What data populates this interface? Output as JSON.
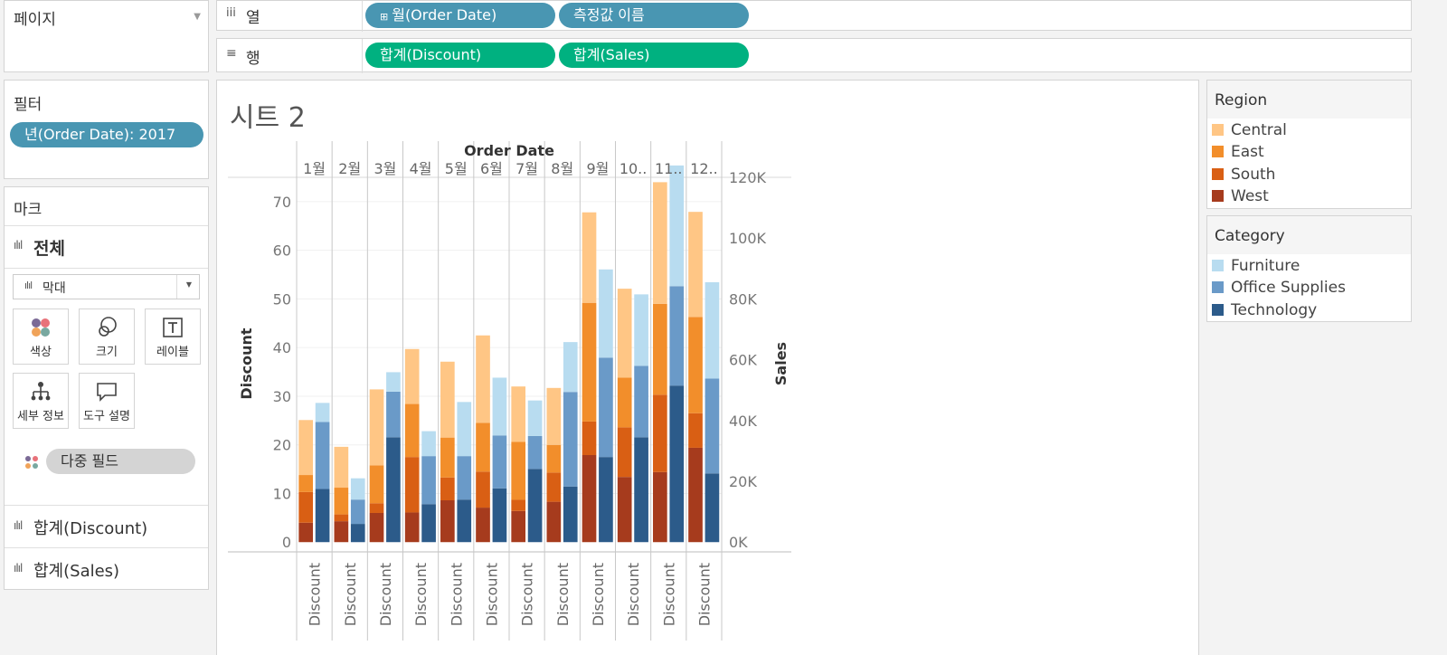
{
  "pages_panel": {
    "title": "페이지"
  },
  "columns_shelf": {
    "label": "열",
    "pills": [
      "월(Order Date)",
      "측정값 이름"
    ]
  },
  "rows_shelf": {
    "label": "행",
    "pills": [
      "합계(Discount)",
      "합계(Sales)"
    ]
  },
  "filters_panel": {
    "title": "필터",
    "pill": "년(Order Date): 2017"
  },
  "marks_panel": {
    "title": "마크",
    "all_label": "전체",
    "mark_type": "막대",
    "cards": {
      "color": "색상",
      "size": "크기",
      "label": "레이블",
      "detail": "세부 정보",
      "tooltip": "도구 설명"
    },
    "multi_field": "다중 필드",
    "measure_discount": "합계(Discount)",
    "measure_sales": "합계(Sales)"
  },
  "sheet": {
    "title": "시트 2"
  },
  "legend_region": {
    "title": "Region",
    "items": [
      {
        "label": "Central",
        "color": "#ffc685"
      },
      {
        "label": "East",
        "color": "#f28e2b"
      },
      {
        "label": "South",
        "color": "#d95f14"
      },
      {
        "label": "West",
        "color": "#a63b1d"
      }
    ]
  },
  "legend_category": {
    "title": "Category",
    "items": [
      {
        "label": "Furniture",
        "color": "#b8dcf0"
      },
      {
        "label": "Office Supplies",
        "color": "#6a9ac8"
      },
      {
        "label": "Technology",
        "color": "#2c5b8a"
      }
    ]
  },
  "chart_data": {
    "type": "bar",
    "title": "Order Date",
    "xlabel": "Order Date",
    "categories": [
      "1월",
      "2월",
      "3월",
      "4월",
      "5월",
      "6월",
      "7월",
      "8월",
      "9월",
      "10..",
      "11..",
      "12.."
    ],
    "bottom_labels": [
      "Discount",
      "Discount",
      "Discount",
      "Discount",
      "Discount",
      "Discount",
      "Discount",
      "Discount",
      "Discount",
      "Discount",
      "Discount",
      "Discount"
    ],
    "left_axis": {
      "label": "Discount",
      "ylim": [
        -2,
        75
      ],
      "ticks": [
        0,
        10,
        20,
        30,
        40,
        50,
        60,
        70
      ]
    },
    "right_axis": {
      "label": "Sales",
      "ylim": [
        -3200,
        120000
      ],
      "ticks": [
        0,
        20000,
        40000,
        60000,
        80000,
        100000,
        120000
      ],
      "tick_labels": [
        "0K",
        "20K",
        "40K",
        "60K",
        "80K",
        "100K",
        "120K"
      ]
    },
    "discount_series": [
      {
        "name": "West",
        "values": [
          4.0,
          4.3,
          6.0,
          6.1,
          8.6,
          7.1,
          6.4,
          8.3,
          17.9,
          13.4,
          14.4,
          19.4
        ]
      },
      {
        "name": "South",
        "values": [
          6.3,
          1.4,
          2.0,
          11.4,
          4.7,
          7.4,
          2.3,
          6.0,
          6.9,
          10.2,
          15.9,
          7.1
        ]
      },
      {
        "name": "East",
        "values": [
          3.5,
          5.5,
          7.8,
          10.9,
          8.2,
          10.0,
          11.9,
          5.7,
          24.4,
          10.2,
          18.7,
          19.8
        ]
      },
      {
        "name": "Central",
        "values": [
          11.3,
          8.4,
          15.6,
          11.3,
          15.6,
          18.0,
          11.4,
          11.7,
          18.6,
          18.3,
          25.0,
          21.6
        ]
      }
    ],
    "sales_series": [
      {
        "name": "Technology",
        "values": [
          17500,
          6000,
          34500,
          12500,
          14000,
          17700,
          24100,
          18300,
          28000,
          34500,
          51500,
          22600
        ]
      },
      {
        "name": "Office Supplies",
        "values": [
          22000,
          8000,
          15000,
          15800,
          14300,
          17400,
          10800,
          31100,
          32700,
          23500,
          32700,
          31200
        ]
      },
      {
        "name": "Furniture",
        "values": [
          6300,
          7000,
          6400,
          8200,
          17800,
          19000,
          11700,
          16400,
          29000,
          23500,
          39700,
          31700
        ]
      }
    ]
  }
}
